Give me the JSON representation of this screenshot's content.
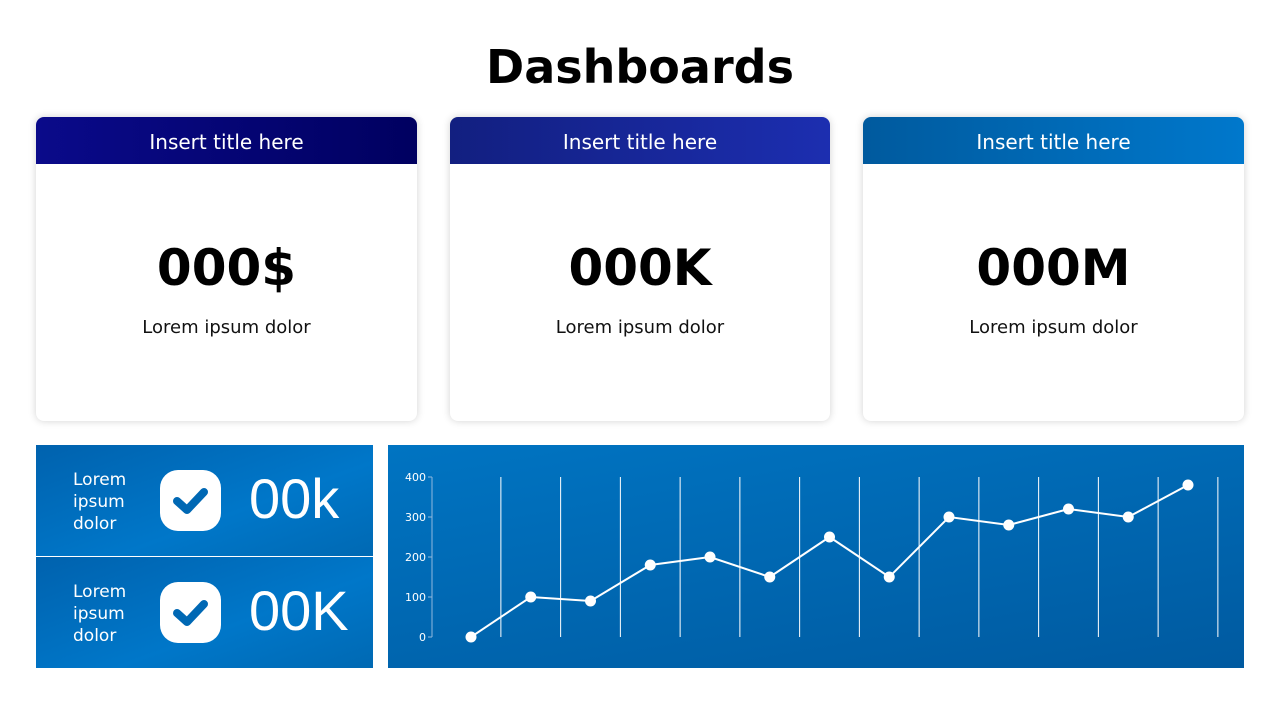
{
  "page": {
    "title": "Dashboards"
  },
  "cards": [
    {
      "title": "Insert title here",
      "value": "000$",
      "caption": "Lorem ipsum dolor",
      "header_colors": [
        "#0a0a8a",
        "#000060"
      ]
    },
    {
      "title": "Insert title here",
      "value": "000K",
      "caption": "Lorem ipsum dolor",
      "header_colors": [
        "#121f80",
        "#1c2eb0"
      ]
    },
    {
      "title": "Insert title here",
      "value": "000M",
      "caption": "Lorem ipsum dolor",
      "header_colors": [
        "#005a9e",
        "#0078cc"
      ]
    }
  ],
  "stats": [
    {
      "label_lines": [
        "Lorem",
        "ipsum",
        "dolor"
      ],
      "value": "00k",
      "icon": "check-icon"
    },
    {
      "label_lines": [
        "Lorem",
        "ipsum",
        "dolor"
      ],
      "value": "00K",
      "icon": "check-icon"
    }
  ],
  "chart_data": {
    "type": "line",
    "x": [
      1,
      2,
      3,
      4,
      5,
      6,
      7,
      8,
      9,
      10,
      11,
      12,
      13
    ],
    "series": [
      {
        "values": [
          0,
          100,
          90,
          180,
          200,
          150,
          250,
          150,
          300,
          280,
          320,
          300,
          380
        ]
      }
    ],
    "yticks": [
      "0",
      "100",
      "200",
      "300",
      "400"
    ],
    "ylim": [
      0,
      400
    ],
    "grid": "vertical",
    "line_color": "#ffffff"
  }
}
